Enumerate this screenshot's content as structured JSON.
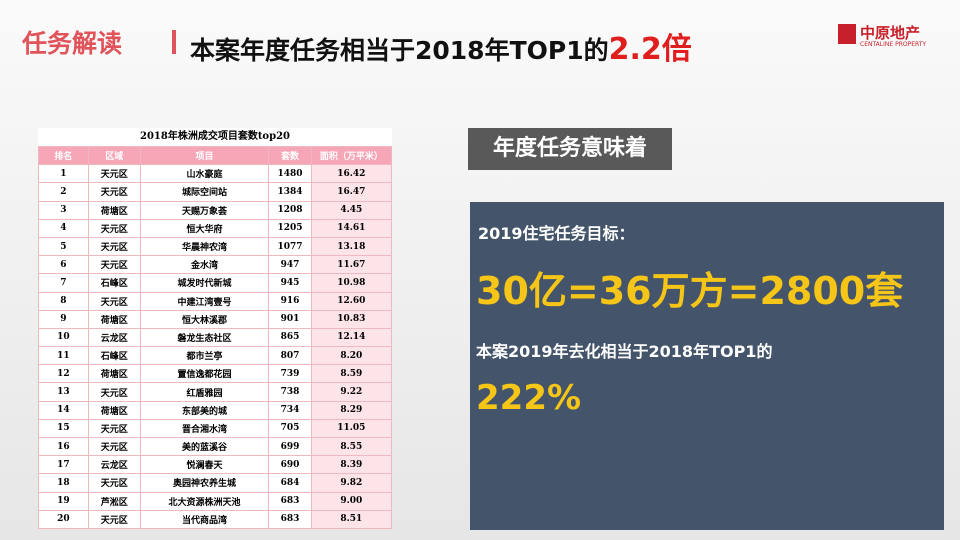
{
  "header": {
    "section": "任务解读",
    "title": "本案年度任务相当于2018年TOP1的",
    "highlight": "2.2倍",
    "logo": "中原地产",
    "logo_sub": "CENTALINE PROPERTY"
  },
  "table": {
    "title": "2018年株洲成交项目套数top20",
    "columns": [
      "排名",
      "区域",
      "项目",
      "套数",
      "面积（万平米）"
    ],
    "rows": [
      [
        "1",
        "天元区",
        "山水豪庭",
        "1480",
        "16.42"
      ],
      [
        "2",
        "天元区",
        "城际空间站",
        "1384",
        "16.47"
      ],
      [
        "3",
        "荷塘区",
        "天赐万象荟",
        "1208",
        "4.45"
      ],
      [
        "4",
        "天元区",
        "恒大华府",
        "1205",
        "14.61"
      ],
      [
        "5",
        "天元区",
        "华晨神农湾",
        "1077",
        "13.18"
      ],
      [
        "6",
        "天元区",
        "金水湾",
        "947",
        "11.67"
      ],
      [
        "7",
        "石峰区",
        "城发时代新城",
        "945",
        "10.98"
      ],
      [
        "8",
        "天元区",
        "中建江湾壹号",
        "916",
        "12.60"
      ],
      [
        "9",
        "荷塘区",
        "恒大林溪郡",
        "901",
        "10.83"
      ],
      [
        "10",
        "云龙区",
        "磐龙生态社区",
        "865",
        "12.14"
      ],
      [
        "11",
        "石峰区",
        "都市兰亭",
        "807",
        "8.20"
      ],
      [
        "12",
        "荷塘区",
        "置信逸都花园",
        "739",
        "8.59"
      ],
      [
        "13",
        "天元区",
        "红盾雅园",
        "738",
        "9.22"
      ],
      [
        "14",
        "荷塘区",
        "东部美的城",
        "734",
        "8.29"
      ],
      [
        "15",
        "天元区",
        "晋合湘水湾",
        "705",
        "11.05"
      ],
      [
        "16",
        "天元区",
        "美的蓝溪谷",
        "699",
        "8.55"
      ],
      [
        "17",
        "云龙区",
        "悦澜春天",
        "690",
        "8.39"
      ],
      [
        "18",
        "天元区",
        "奥园神农养生城",
        "684",
        "9.82"
      ],
      [
        "19",
        "芦淞区",
        "北大资源株洲天池",
        "683",
        "9.00"
      ],
      [
        "20",
        "天元区",
        "当代商品湾",
        "683",
        "8.51"
      ]
    ]
  },
  "panel": {
    "label": "年度任务意味着",
    "goal_label": "2019住宅任务目标：",
    "goal": "30亿=36万方=2800套",
    "compare_label": "本案2019年去化相当于2018年TOP1的",
    "compare": "222%"
  }
}
